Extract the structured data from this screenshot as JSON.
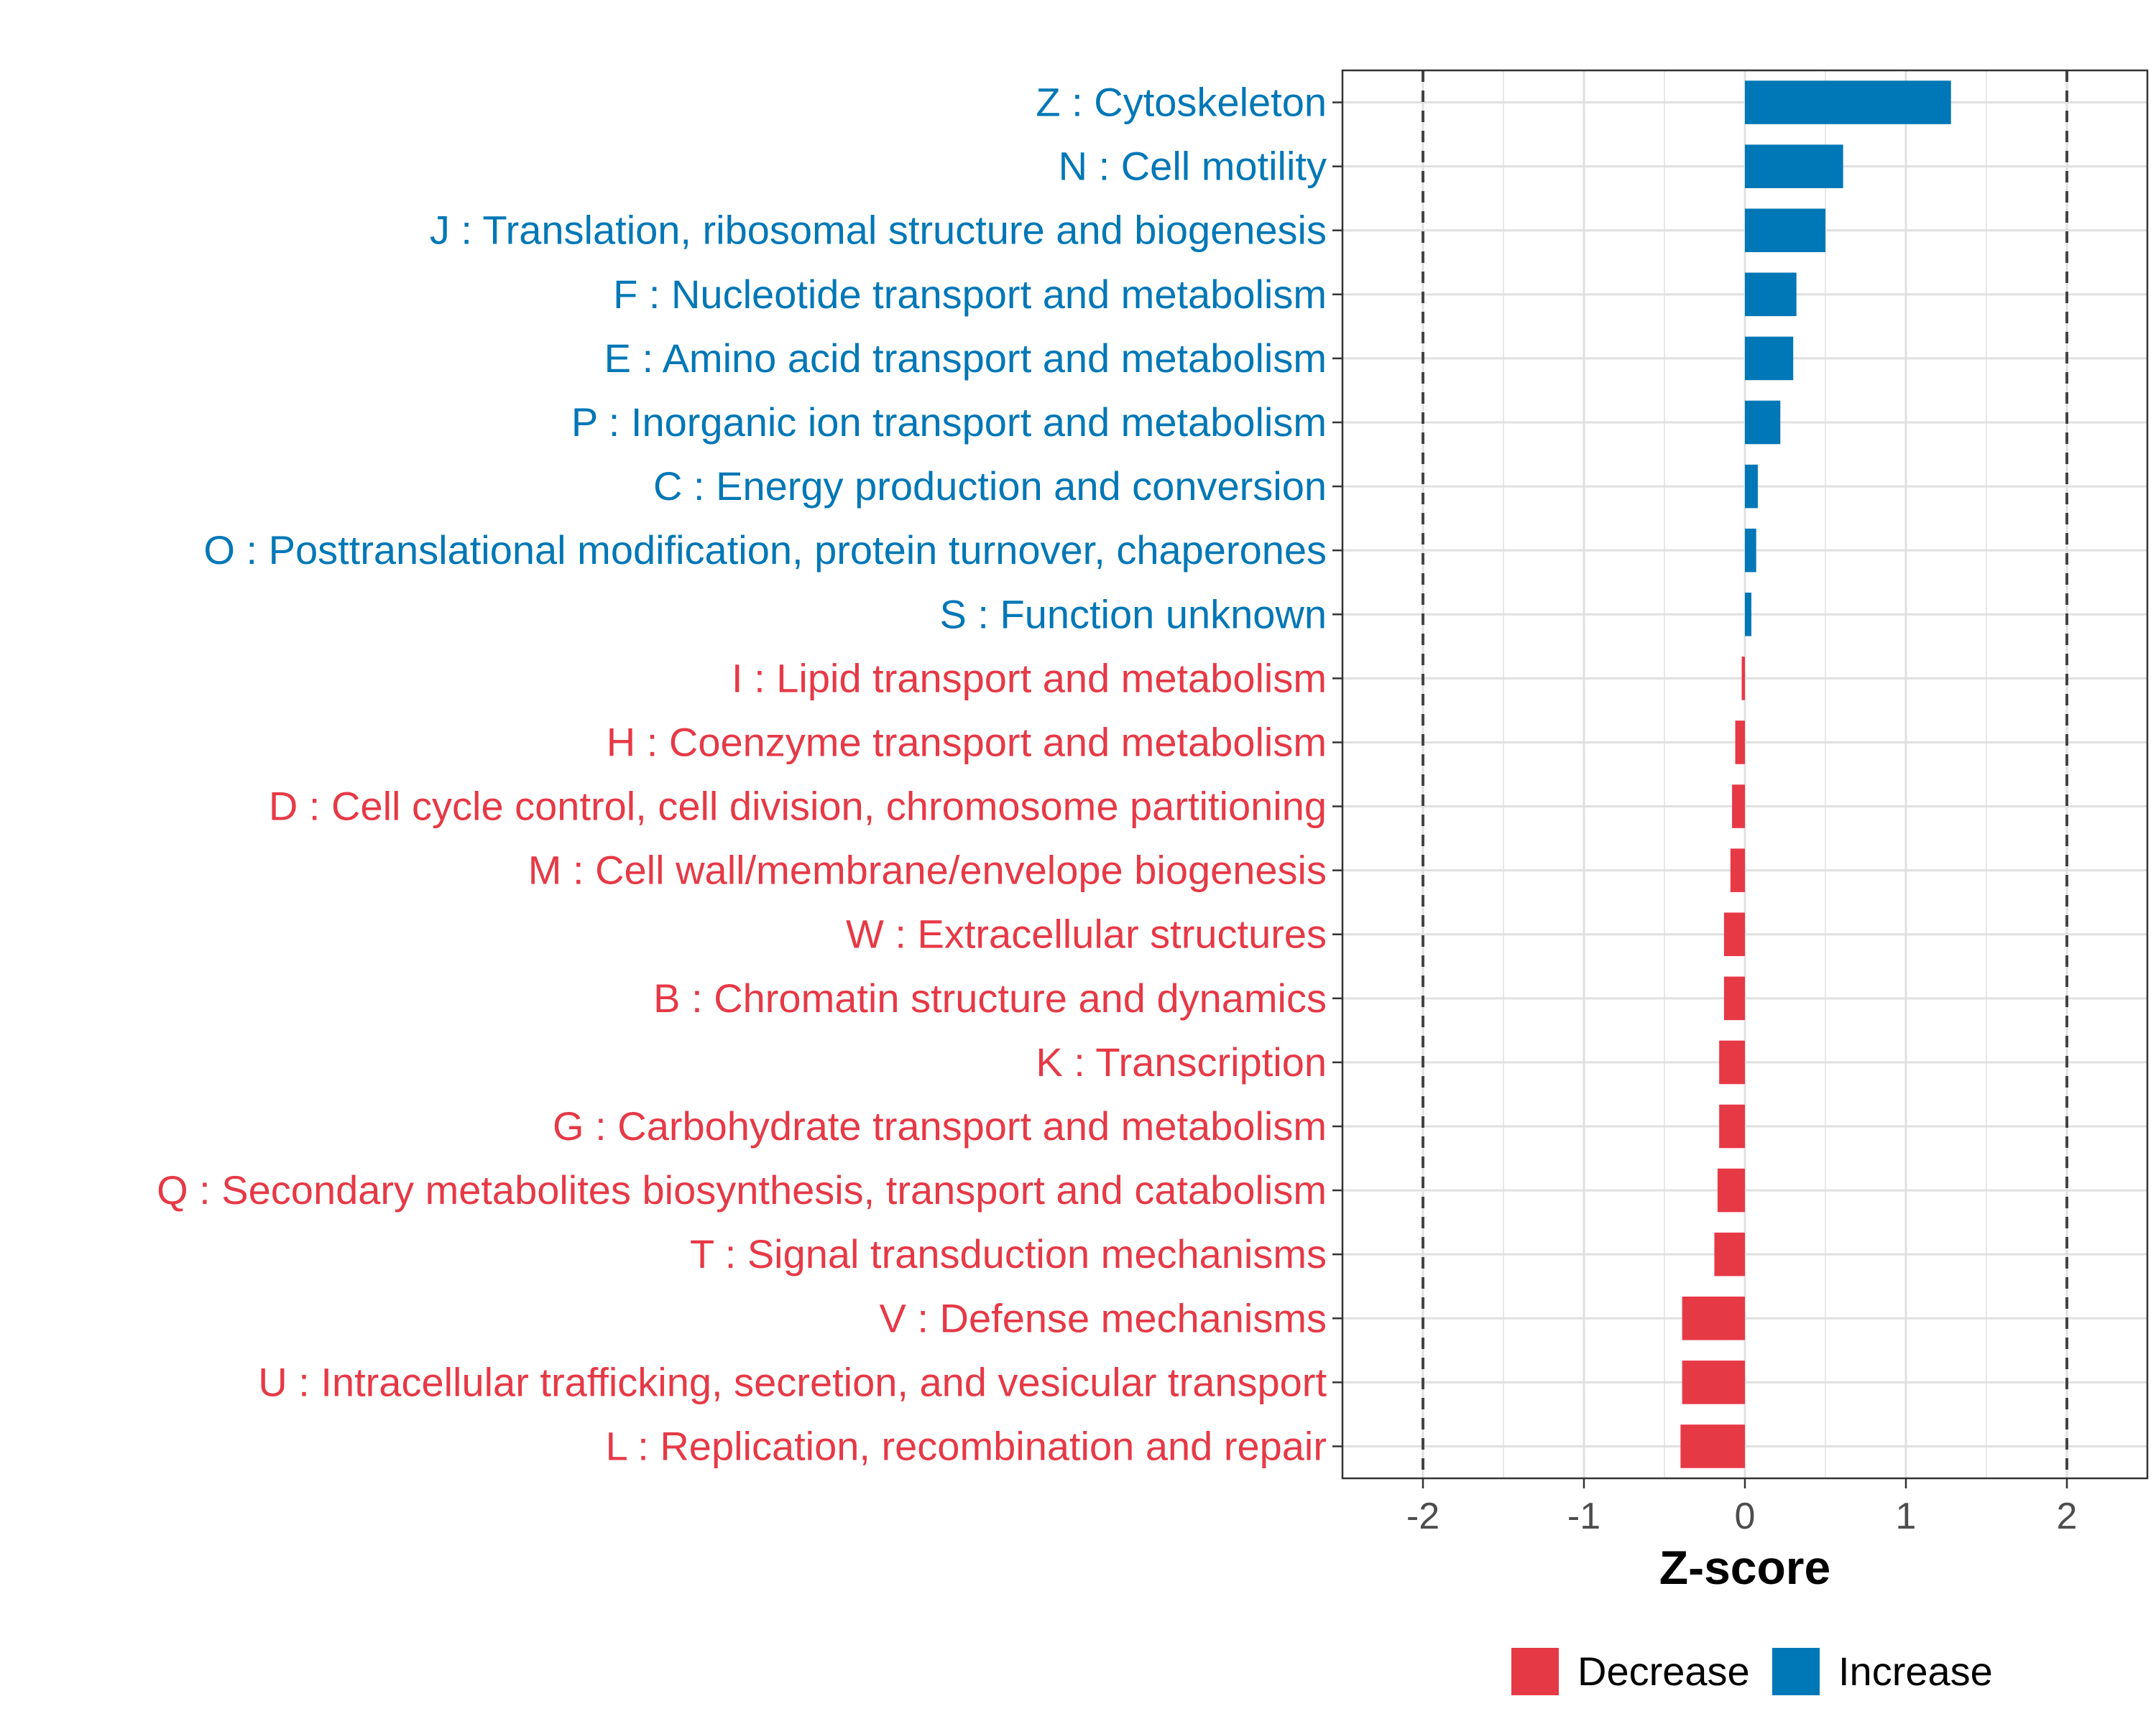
{
  "chart_data": {
    "type": "bar",
    "orientation": "horizontal",
    "title": "",
    "xlabel": "Z-score",
    "ylabel": "",
    "xlim": [
      -2.5,
      2.5
    ],
    "xticks": [
      "-2",
      "-1",
      "0",
      "1",
      "2"
    ],
    "xtick_values": [
      -2,
      -1,
      0,
      1,
      2
    ],
    "reference_lines": [
      -2,
      2
    ],
    "grid": true,
    "legend_position": "bottom",
    "categories": [
      "Z : Cytoskeleton",
      "N : Cell motility",
      "J : Translation, ribosomal structure and biogenesis",
      "F : Nucleotide transport and metabolism",
      "E : Amino acid transport and metabolism",
      "P : Inorganic ion transport and metabolism",
      "C : Energy production and conversion",
      "O : Posttranslational modification, protein turnover, chaperones",
      "S : Function unknown",
      "I : Lipid transport and metabolism",
      "H : Coenzyme transport and metabolism",
      "D : Cell cycle control, cell division, chromosome partitioning",
      "M : Cell wall/membrane/envelope biogenesis",
      "W : Extracellular structures",
      "B : Chromatin structure and dynamics",
      "K : Transcription",
      "G : Carbohydrate transport and metabolism",
      "Q : Secondary metabolites biosynthesis, transport and catabolism",
      "T : Signal transduction mechanisms",
      "V : Defense mechanisms",
      "U : Intracellular trafficking, secretion, and vesicular transport",
      "L : Replication, recombination and repair"
    ],
    "values": [
      1.28,
      0.61,
      0.5,
      0.32,
      0.3,
      0.22,
      0.08,
      0.07,
      0.04,
      -0.02,
      -0.06,
      -0.08,
      -0.09,
      -0.13,
      -0.13,
      -0.16,
      -0.16,
      -0.17,
      -0.19,
      -0.39,
      -0.39,
      -0.4
    ],
    "groups": [
      "Increase",
      "Increase",
      "Increase",
      "Increase",
      "Increase",
      "Increase",
      "Increase",
      "Increase",
      "Increase",
      "Decrease",
      "Decrease",
      "Decrease",
      "Decrease",
      "Decrease",
      "Decrease",
      "Decrease",
      "Decrease",
      "Decrease",
      "Decrease",
      "Decrease",
      "Decrease",
      "Decrease"
    ],
    "legend": [
      {
        "name": "Decrease",
        "color": "#e63946"
      },
      {
        "name": "Increase",
        "color": "#0077b6"
      }
    ]
  }
}
